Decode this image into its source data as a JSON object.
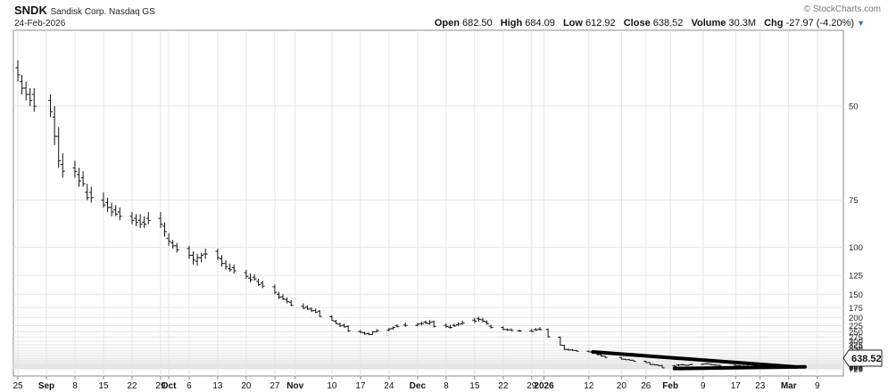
{
  "header": {
    "symbol": "SNDK",
    "company": "Sandisk Corp. Nasdaq GS",
    "date": "24-Feb-2026",
    "open_label": "Open",
    "open": "682.50",
    "high_label": "High",
    "high": "684.09",
    "low_label": "Low",
    "low": "612.92",
    "close_label": "Close",
    "close": "638.52",
    "volume_label": "Volume",
    "volume": "30.3M",
    "chg_label": "Chg",
    "chg": "-27.97 (-4.20%)",
    "chg_indicator": "▼",
    "brand": "© StockCharts.com"
  },
  "last_price_badge": "638.52",
  "chart_data": {
    "type": "ohlc",
    "y_scale": "reciprocal",
    "y_ticks": [
      50,
      75,
      100,
      125,
      150,
      175,
      200,
      225,
      250,
      275,
      300,
      325,
      350,
      375,
      400,
      425,
      450,
      475,
      500,
      525,
      550,
      575,
      600,
      625,
      650,
      675,
      700,
      725
    ],
    "y_tick_labels": [
      "50",
      "75",
      "100",
      "125",
      "150",
      "175",
      "200",
      "225",
      "250",
      "275",
      "300",
      "325",
      "350",
      "375",
      "400",
      "425",
      "450",
      "475",
      "500",
      "525",
      "550",
      "575",
      "600",
      "625",
      "650",
      "675",
      "700",
      "725"
    ],
    "x_tick_labels": [
      "25",
      "Sep",
      "8",
      "15",
      "22",
      "29",
      "Oct",
      "6",
      "13",
      "20",
      "27",
      "Nov",
      "10",
      "17",
      "24",
      "Dec",
      "8",
      "15",
      "22",
      "29",
      "2026",
      "12",
      "20",
      "26",
      "Feb",
      "9",
      "17",
      "23",
      "Mar",
      "9"
    ],
    "grid": true,
    "series": [
      {
        "x": [
          "2025-08-25",
          "2025-08-26",
          "2025-08-27",
          "2025-08-28",
          "2025-08-29",
          "2025-09-02",
          "2025-09-03",
          "2025-09-04",
          "2025-09-05",
          "2025-09-08",
          "2025-09-09",
          "2025-09-10",
          "2025-09-11",
          "2025-09-12",
          "2025-09-15",
          "2025-09-16",
          "2025-09-17",
          "2025-09-18",
          "2025-09-19",
          "2025-09-22",
          "2025-09-23",
          "2025-09-24",
          "2025-09-25",
          "2025-09-26",
          "2025-09-29",
          "2025-09-30",
          "2025-10-01",
          "2025-10-02",
          "2025-10-03",
          "2025-10-06",
          "2025-10-07",
          "2025-10-08",
          "2025-10-09",
          "2025-10-10",
          "2025-10-13",
          "2025-10-14",
          "2025-10-15",
          "2025-10-16",
          "2025-10-17",
          "2025-10-20",
          "2025-10-21",
          "2025-10-22",
          "2025-10-23",
          "2025-10-24",
          "2025-10-27",
          "2025-10-28",
          "2025-10-29",
          "2025-10-30",
          "2025-10-31",
          "2025-11-03",
          "2025-11-04",
          "2025-11-05",
          "2025-11-06",
          "2025-11-07",
          "2025-11-10",
          "2025-11-11",
          "2025-11-12",
          "2025-11-13",
          "2025-11-14",
          "2025-11-17",
          "2025-11-18",
          "2025-11-19",
          "2025-11-20",
          "2025-11-21",
          "2025-11-24",
          "2025-11-25",
          "2025-11-26",
          "2025-11-28",
          "2025-12-01",
          "2025-12-02",
          "2025-12-03",
          "2025-12-04",
          "2025-12-05",
          "2025-12-08",
          "2025-12-09",
          "2025-12-10",
          "2025-12-11",
          "2025-12-12",
          "2025-12-15",
          "2025-12-16",
          "2025-12-17",
          "2025-12-18",
          "2025-12-19",
          "2025-12-22",
          "2025-12-23",
          "2025-12-24",
          "2025-12-26",
          "2025-12-29",
          "2025-12-30",
          "2025-12-31",
          "2026-01-02",
          "2026-01-05",
          "2026-01-06",
          "2026-01-07",
          "2026-01-08",
          "2026-01-09",
          "2026-01-12",
          "2026-01-13",
          "2026-01-14",
          "2026-01-15",
          "2026-01-16",
          "2026-01-20",
          "2026-01-21",
          "2026-01-22",
          "2026-01-23",
          "2026-01-26",
          "2026-01-27",
          "2026-01-28",
          "2026-01-29",
          "2026-01-30",
          "2026-02-02",
          "2026-02-03",
          "2026-02-04",
          "2026-02-05",
          "2026-02-06",
          "2026-02-09",
          "2026-02-10",
          "2026-02-11",
          "2026-02-12",
          "2026-02-13",
          "2026-02-17",
          "2026-02-18",
          "2026-02-19",
          "2026-02-20",
          "2026-02-23",
          "2026-02-24"
        ],
        "open": [
          44,
          46,
          47,
          48,
          48,
          49,
          52,
          56,
          63,
          64,
          66,
          67,
          72,
          72,
          75,
          76,
          78,
          79,
          80,
          82,
          83,
          84,
          85,
          83,
          83,
          87,
          94,
          97,
          99,
          101,
          106,
          111,
          108,
          105,
          103,
          109,
          113,
          118,
          117,
          122,
          128,
          127,
          132,
          134,
          139,
          150,
          154,
          159,
          164,
          172,
          174,
          178,
          181,
          183,
          197,
          211,
          220,
          224,
          228,
          248,
          255,
          258,
          262,
          250,
          243,
          236,
          226,
          223,
          224,
          218,
          213,
          219,
          212,
          224,
          231,
          224,
          222,
          219,
          207,
          203,
          206,
          213,
          227,
          232,
          240,
          241,
          245,
          246,
          240,
          238,
          240,
          276,
          329,
          365,
          368,
          373,
          381,
          388,
          397,
          419,
          438,
          458,
          486,
          492,
          502,
          521,
          547,
          590,
          602,
          620,
          631,
          600,
          597,
          613,
          596,
          586,
          575,
          585,
          604,
          615,
          610,
          623,
          643,
          636,
          640,
          682
        ],
        "high": [
          46,
          48,
          49,
          50,
          51,
          52,
          58,
          64,
          67,
          67,
          70,
          70,
          75,
          76,
          78,
          80,
          82,
          82,
          84,
          86,
          87,
          88,
          88,
          86,
          88,
          93,
          99,
          101,
          104,
          109,
          114,
          115,
          112,
          109,
          110,
          116,
          119,
          121,
          123,
          129,
          133,
          131,
          138,
          141,
          150,
          158,
          160,
          166,
          172,
          178,
          180,
          185,
          188,
          198,
          210,
          220,
          230,
          232,
          250,
          256,
          263,
          265,
          263,
          252,
          248,
          240,
          232,
          230,
          228,
          224,
          220,
          222,
          232,
          233,
          236,
          230,
          226,
          222,
          216,
          212,
          214,
          222,
          236,
          243,
          246,
          247,
          250,
          250,
          246,
          244,
          278,
          332,
          370,
          372,
          375,
          384,
          391,
          402,
          424,
          443,
          462,
          490,
          498,
          508,
          526,
          553,
          598,
          610,
          628,
          694,
          696,
          642,
          620,
          625,
          612,
          602,
          592,
          602,
          618,
          628,
          630,
          640,
          650,
          655,
          660,
          684
        ],
        "low": [
          43,
          45,
          46,
          47,
          47,
          48,
          50,
          54,
          60,
          62,
          64,
          65,
          69,
          70,
          72,
          74,
          76,
          77,
          78,
          80,
          81,
          81,
          82,
          80,
          80,
          85,
          91,
          95,
          97,
          99,
          103,
          105,
          104,
          101,
          101,
          106,
          110,
          113,
          114,
          119,
          123,
          124,
          129,
          131,
          136,
          146,
          150,
          155,
          160,
          166,
          170,
          174,
          177,
          180,
          193,
          206,
          215,
          218,
          224,
          242,
          248,
          252,
          246,
          238,
          234,
          228,
          220,
          215,
          216,
          212,
          208,
          206,
          208,
          218,
          222,
          218,
          214,
          208,
          200,
          198,
          200,
          208,
          222,
          228,
          236,
          236,
          240,
          238,
          234,
          230,
          236,
          272,
          325,
          355,
          360,
          368,
          375,
          385,
          394,
          414,
          434,
          452,
          480,
          486,
          498,
          515,
          540,
          582,
          596,
          605,
          600,
          588,
          583,
          595,
          580,
          570,
          565,
          575,
          590,
          600,
          598,
          610,
          615,
          615,
          620,
          612.92
        ],
        "close": [
          45,
          47,
          48,
          49,
          50,
          51,
          56,
          62,
          65,
          65,
          68,
          69,
          74,
          74,
          77,
          78,
          80,
          81,
          82,
          84,
          85,
          86,
          86,
          84,
          86,
          90,
          96,
          99,
          102,
          106,
          110,
          108,
          106,
          105,
          108,
          113,
          116,
          119,
          120,
          126,
          130,
          129,
          136,
          138,
          147,
          155,
          158,
          163,
          170,
          176,
          178,
          182,
          186,
          196,
          208,
          218,
          226,
          230,
          246,
          252,
          260,
          262,
          250,
          245,
          238,
          232,
          228,
          224,
          220,
          218,
          216,
          214,
          228,
          228,
          232,
          226,
          220,
          216,
          210,
          204,
          210,
          218,
          232,
          240,
          242,
          244,
          246,
          248,
          242,
          240,
          274,
          328,
          362,
          368,
          372,
          380,
          388,
          398,
          420,
          440,
          458,
          484,
          494,
          504,
          522,
          550,
          594,
          604,
          624,
          690,
          640,
          605,
          600,
          618,
          590,
          580,
          570,
          598,
          610,
          620,
          625,
          630,
          640,
          650,
          666.49,
          638.52
        ]
      }
    ],
    "trendlines": [
      {
        "from": [
          "2026-01-13",
          388
        ],
        "to": [
          "2026-03-04",
          664
        ]
      },
      {
        "from": [
          "2026-02-02",
          714
        ],
        "to": [
          "2026-03-06",
          656
        ]
      }
    ]
  }
}
